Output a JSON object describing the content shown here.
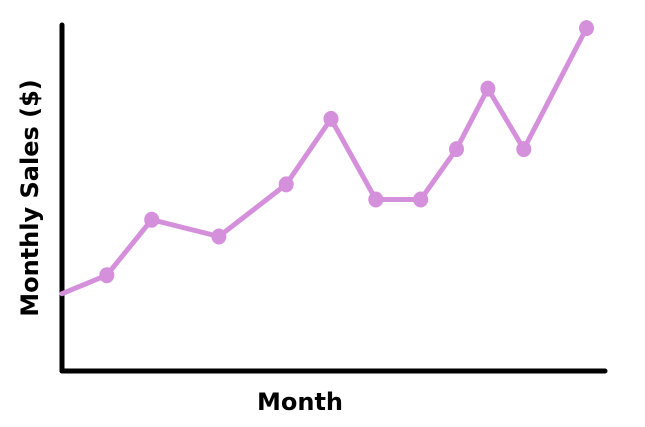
{
  "chart_data": {
    "type": "line",
    "title": "",
    "xlabel": "Month",
    "ylabel": "Monthly Sales ($)",
    "x": [
      0,
      1,
      2,
      3.5,
      5,
      6,
      7,
      8,
      8.8,
      9.5,
      10.3,
      11.7
    ],
    "series": [
      {
        "values": [
          2.3,
          2.85,
          4.5,
          4.0,
          5.55,
          7.5,
          5.1,
          5.1,
          6.6,
          8.4,
          6.6,
          10.2
        ]
      }
    ],
    "xlim": [
      0,
      12
    ],
    "ylim": [
      0,
      10.5
    ],
    "grid": false,
    "legend": "none",
    "show_tick_labels": false,
    "colors": {
      "line": "#d590dc",
      "axis": "#000000"
    }
  }
}
